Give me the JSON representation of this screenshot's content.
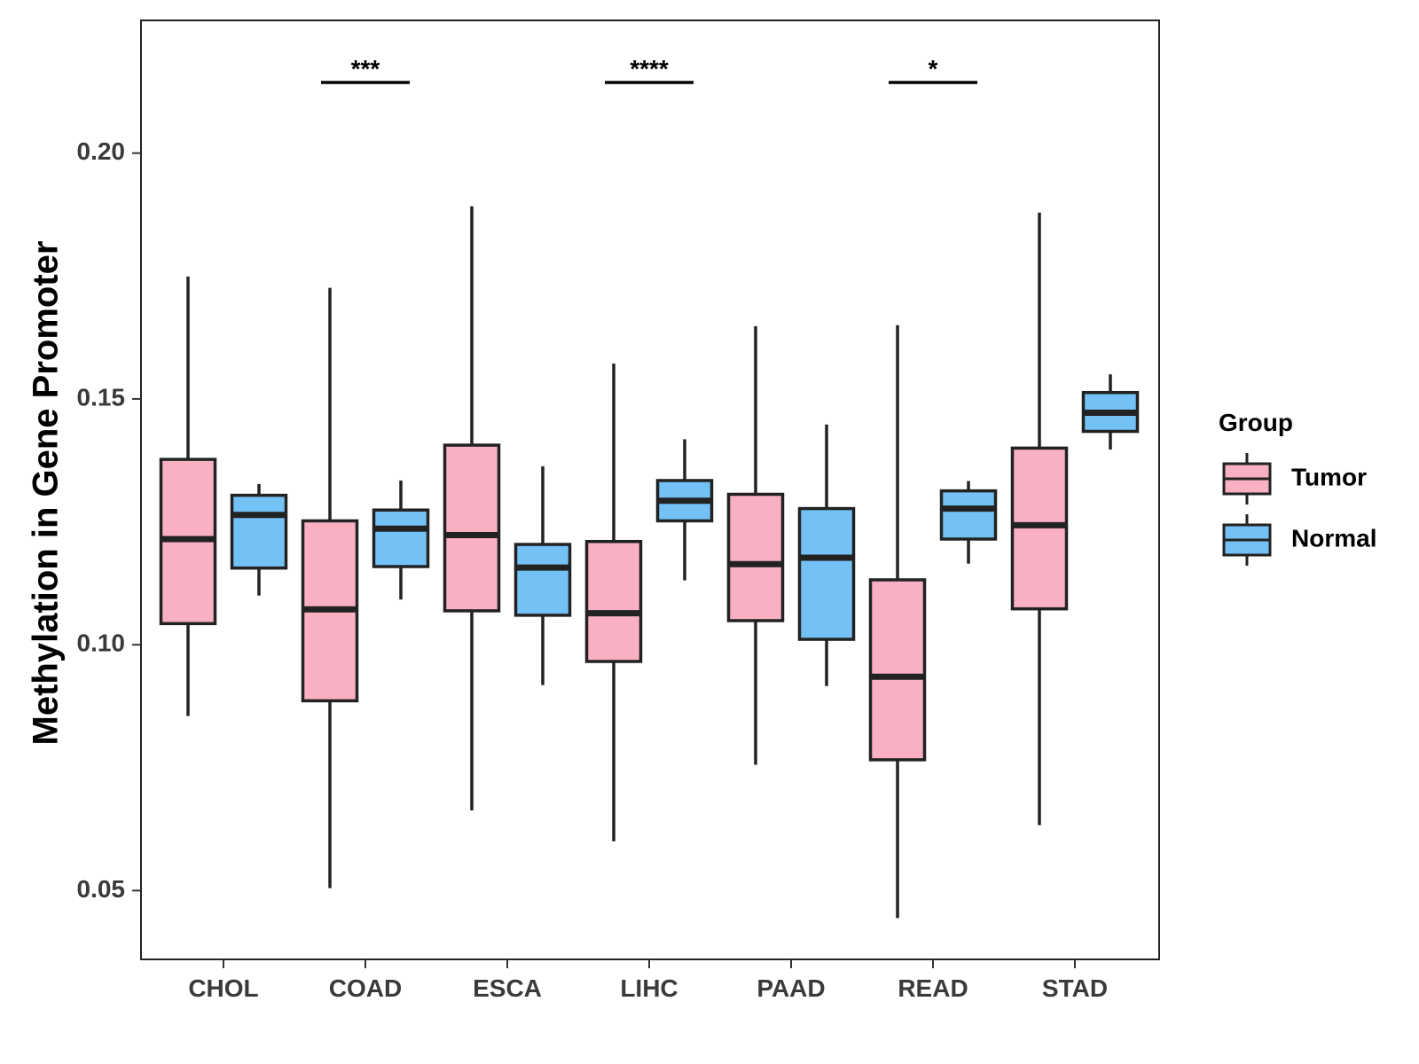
{
  "chart_data": {
    "type": "boxplot",
    "title": "",
    "xlabel": "",
    "ylabel": "Methylation in Gene Promoter",
    "ylim": [
      0.036,
      0.227
    ],
    "yticks": [
      "0.05",
      "0.10",
      "0.15",
      "0.20"
    ],
    "categories": [
      "CHOL",
      "COAD",
      "ESCA",
      "LIHC",
      "PAAD",
      "READ",
      "STAD"
    ],
    "legend": {
      "title": "Group",
      "position": "right",
      "items": [
        {
          "name": "Tumor",
          "color": "#f9b0c3"
        },
        {
          "name": "Normal",
          "color": "#74c1f6"
        }
      ]
    },
    "series": [
      {
        "name": "Tumor",
        "color": "#f9b0c3",
        "boxes": [
          {
            "min": 0.0855,
            "q1": 0.1043,
            "median": 0.1215,
            "q3": 0.1377,
            "max": 0.1749
          },
          {
            "min": 0.0505,
            "q1": 0.0886,
            "median": 0.1072,
            "q3": 0.1252,
            "max": 0.1726
          },
          {
            "min": 0.0663,
            "q1": 0.1069,
            "median": 0.1223,
            "q3": 0.1406,
            "max": 0.1892
          },
          {
            "min": 0.06,
            "q1": 0.0966,
            "median": 0.1064,
            "q3": 0.121,
            "max": 0.1572
          },
          {
            "min": 0.0756,
            "q1": 0.1049,
            "median": 0.1164,
            "q3": 0.1306,
            "max": 0.1648
          },
          {
            "min": 0.0444,
            "q1": 0.0766,
            "median": 0.0935,
            "q3": 0.1132,
            "max": 0.165
          },
          {
            "min": 0.0633,
            "q1": 0.1073,
            "median": 0.1243,
            "q3": 0.14,
            "max": 0.1879
          }
        ]
      },
      {
        "name": "Normal",
        "color": "#74c1f6",
        "boxes": [
          {
            "min": 0.11,
            "q1": 0.1156,
            "median": 0.1264,
            "q3": 0.1304,
            "max": 0.1327
          },
          {
            "min": 0.1092,
            "q1": 0.1159,
            "median": 0.1236,
            "q3": 0.1274,
            "max": 0.1334
          },
          {
            "min": 0.0918,
            "q1": 0.106,
            "median": 0.1157,
            "q3": 0.1204,
            "max": 0.1363
          },
          {
            "min": 0.1131,
            "q1": 0.1252,
            "median": 0.1293,
            "q3": 0.1334,
            "max": 0.1418
          },
          {
            "min": 0.0916,
            "q1": 0.1011,
            "median": 0.1177,
            "q3": 0.1277,
            "max": 0.1448
          },
          {
            "min": 0.1165,
            "q1": 0.1215,
            "median": 0.1277,
            "q3": 0.1313,
            "max": 0.1333
          },
          {
            "min": 0.1397,
            "q1": 0.1434,
            "median": 0.1472,
            "q3": 0.1513,
            "max": 0.155
          }
        ]
      }
    ],
    "annotations": [
      {
        "category": "COAD",
        "label": "***"
      },
      {
        "category": "LIHC",
        "label": "****"
      },
      {
        "category": "READ",
        "label": "*"
      }
    ]
  }
}
